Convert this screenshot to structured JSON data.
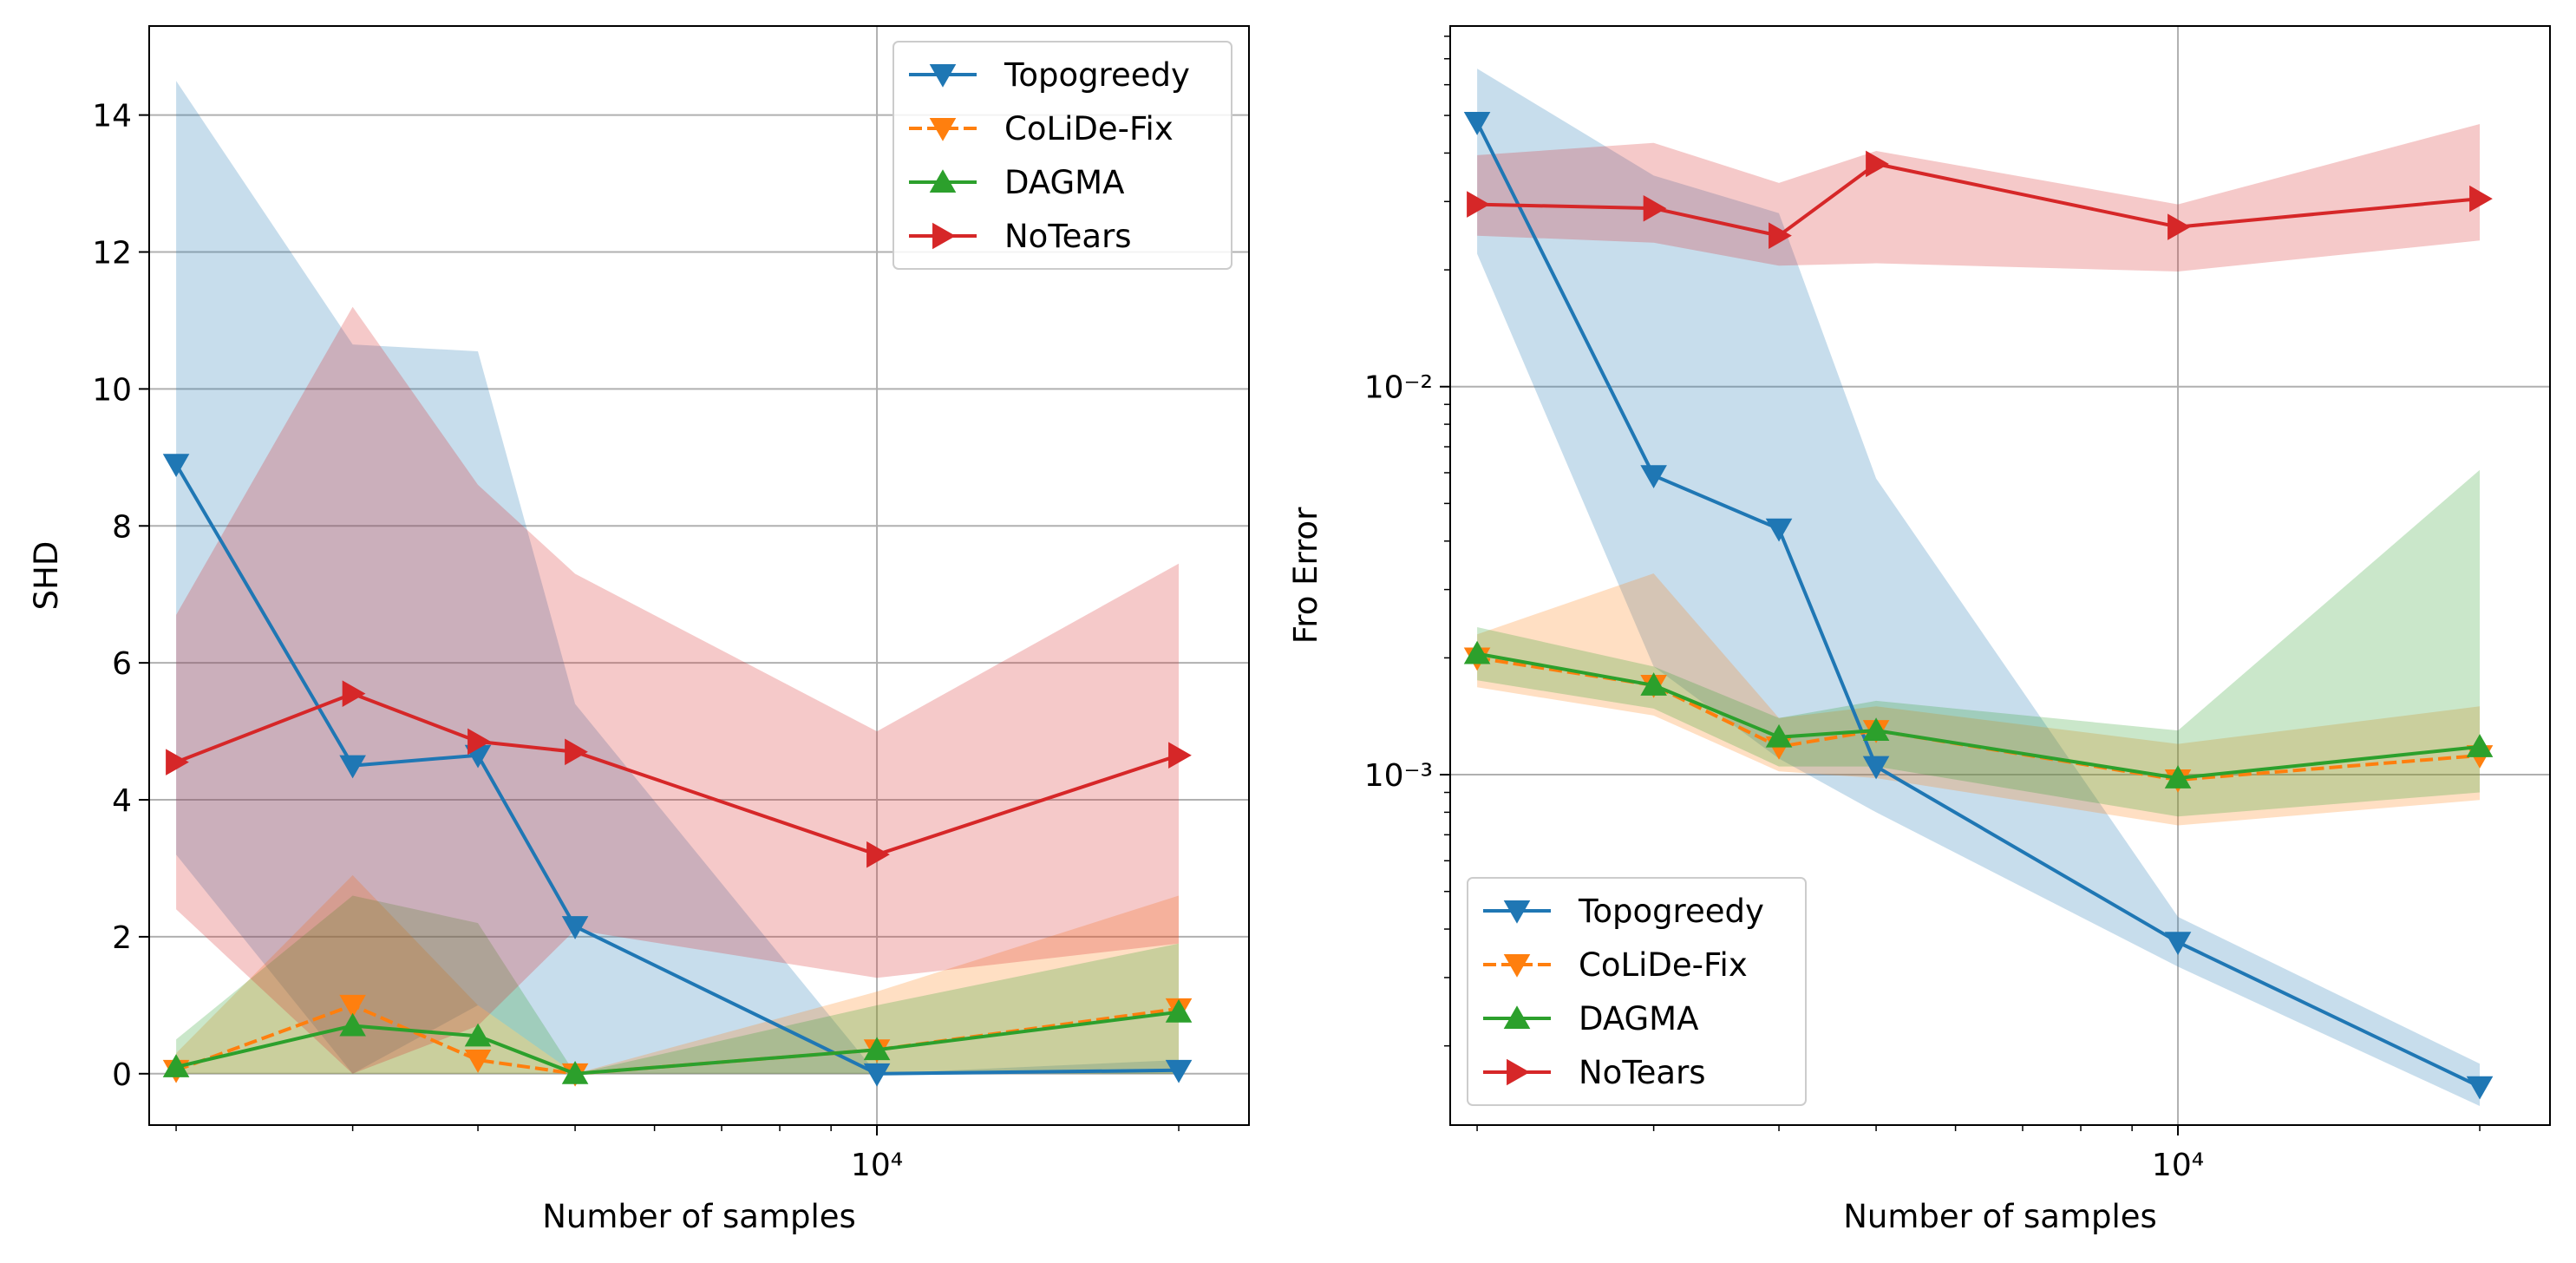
{
  "colors": {
    "Topogreedy": "#1f77b4",
    "CoLiDe-Fix": "#ff7f0e",
    "DAGMA": "#2ca02c",
    "NoTears": "#d62728",
    "grid": "#b0b0b0"
  },
  "chart_data": [
    {
      "type": "line",
      "xlabel": "Number of samples",
      "ylabel": "SHD",
      "xscale": "log",
      "yscale": "linear",
      "xlim": [
        1880,
        23500
      ],
      "ylim": [
        -0.75,
        15.3
      ],
      "yticks": [
        0,
        2,
        4,
        6,
        8,
        10,
        12,
        14
      ],
      "ytick_labels": [
        "0",
        "2",
        "4",
        "6",
        "8",
        "10",
        "12",
        "14"
      ],
      "xticks": [
        10000
      ],
      "xtick_labels": [
        "10⁴"
      ],
      "grid": true,
      "legend_position": "top-right",
      "x": [
        2000,
        3000,
        4000,
        5000,
        10000,
        20000
      ],
      "series": [
        {
          "name": "Topogreedy",
          "marker": "triangle-down",
          "dash": false,
          "values": [
            8.9,
            4.5,
            4.65,
            2.15,
            0.0,
            0.05
          ],
          "band_low": [
            3.2,
            0.0,
            1.0,
            0.0,
            0.0,
            0.0
          ],
          "band_high": [
            14.5,
            10.65,
            10.55,
            5.4,
            0.0,
            0.2
          ]
        },
        {
          "name": "CoLiDe-Fix",
          "marker": "triangle-down",
          "dash": true,
          "values": [
            0.05,
            1.0,
            0.2,
            0.0,
            0.35,
            0.95
          ],
          "band_low": [
            0.0,
            0.0,
            0.0,
            0.0,
            0.0,
            0.0
          ],
          "band_high": [
            0.3,
            2.9,
            1.0,
            0.0,
            1.2,
            2.6
          ]
        },
        {
          "name": "DAGMA",
          "marker": "triangle-up",
          "dash": false,
          "values": [
            0.1,
            0.7,
            0.55,
            0.0,
            0.35,
            0.9
          ],
          "band_low": [
            0.0,
            0.0,
            0.0,
            0.0,
            0.0,
            0.0
          ],
          "band_high": [
            0.5,
            2.6,
            2.2,
            0.0,
            1.0,
            1.9
          ]
        },
        {
          "name": "NoTears",
          "marker": "triangle-right",
          "dash": false,
          "values": [
            4.55,
            5.55,
            4.85,
            4.7,
            3.2,
            4.65
          ],
          "band_low": [
            2.4,
            0.0,
            0.7,
            2.1,
            1.4,
            1.9
          ],
          "band_high": [
            6.7,
            11.2,
            8.6,
            7.3,
            5.0,
            7.45
          ]
        }
      ]
    },
    {
      "type": "line",
      "xlabel": "Number of samples",
      "ylabel": "Fro Error",
      "xscale": "log",
      "yscale": "log",
      "xlim": [
        1880,
        23500
      ],
      "ylim": [
        0.000125,
        0.085
      ],
      "yticks": [
        0.001,
        0.01
      ],
      "ytick_labels": [
        "10⁻³",
        "10⁻²"
      ],
      "xticks": [
        10000
      ],
      "xtick_labels": [
        "10⁴"
      ],
      "grid": true,
      "legend_position": "bottom-left",
      "x": [
        2000,
        3000,
        4000,
        5000,
        10000,
        20000
      ],
      "series": [
        {
          "name": "Topogreedy",
          "marker": "triangle-down",
          "dash": false,
          "values": [
            0.048,
            0.0059,
            0.0043,
            0.00105,
            0.00037,
            0.000157
          ],
          "band_low": [
            0.022,
            0.0019,
            0.0011,
            0.0008,
            0.00032,
            0.00014
          ],
          "band_high": [
            0.066,
            0.035,
            0.028,
            0.0058,
            0.00043,
            0.00018
          ]
        },
        {
          "name": "CoLiDe-Fix",
          "marker": "triangle-down",
          "dash": true,
          "values": [
            0.002,
            0.0017,
            0.00118,
            0.0013,
            0.00097,
            0.00112
          ],
          "band_low": [
            0.00168,
            0.00142,
            0.00102,
            0.00098,
            0.00074,
            0.00086
          ],
          "band_high": [
            0.0023,
            0.0033,
            0.0014,
            0.0015,
            0.0012,
            0.0015
          ]
        },
        {
          "name": "DAGMA",
          "marker": "triangle-up",
          "dash": false,
          "values": [
            0.00205,
            0.0017,
            0.00125,
            0.0013,
            0.00098,
            0.00118
          ],
          "band_low": [
            0.00175,
            0.00148,
            0.00105,
            0.00105,
            0.00078,
            0.0009
          ],
          "band_high": [
            0.0024,
            0.0019,
            0.0014,
            0.00155,
            0.0013,
            0.0061
          ]
        },
        {
          "name": "NoTears",
          "marker": "triangle-right",
          "dash": false,
          "values": [
            0.0295,
            0.0288,
            0.0245,
            0.0375,
            0.0258,
            0.0305
          ],
          "band_low": [
            0.0245,
            0.0235,
            0.0205,
            0.0208,
            0.0198,
            0.0238
          ],
          "band_high": [
            0.0395,
            0.0425,
            0.0335,
            0.0405,
            0.0295,
            0.0475
          ]
        }
      ]
    }
  ]
}
